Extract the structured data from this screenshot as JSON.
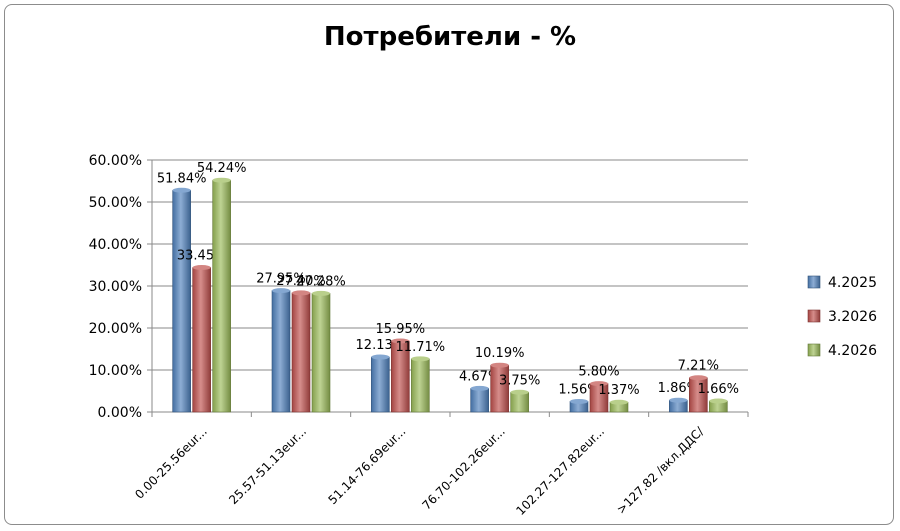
{
  "chart_data": {
    "type": "bar",
    "title": "Потребители - %",
    "categories": [
      "0.00-25.56eur...",
      "25.57-51.13eur...",
      "51.14-76.69eur...",
      "76.70-102.26eur...",
      "102.27-127.82eur...",
      ">127.82 /вкл.ДДС/"
    ],
    "series": [
      {
        "name": "4.2025",
        "color": "#4f81bd",
        "values": [
          51.84,
          27.95,
          12.13,
          4.67,
          1.56,
          1.86
        ],
        "labels": [
          "51.84%",
          "27.95%",
          "12.13%",
          "4.67%",
          "1.56%",
          "1.86%"
        ]
      },
      {
        "name": "3.2026",
        "color": "#c0504d",
        "values": [
          33.45,
          27.4,
          15.95,
          10.19,
          5.8,
          7.21
        ],
        "labels": [
          "33.45%",
          "27.40%",
          "15.95%",
          "10.19%",
          "5.80%",
          "7.21%"
        ]
      },
      {
        "name": "4.2026",
        "color": "#9bbb59",
        "values": [
          54.24,
          27.28,
          11.71,
          3.75,
          1.37,
          1.66
        ],
        "labels": [
          "54.24%",
          "27.28%",
          "11.71%",
          "3.75%",
          "1.37%",
          "1.66%"
        ]
      }
    ],
    "yticks": [
      "0.00%",
      "10.00%",
      "20.00%",
      "30.00%",
      "40.00%",
      "50.00%",
      "60.00%"
    ],
    "ylim": [
      0,
      60
    ],
    "grid": true,
    "legend": "right"
  }
}
